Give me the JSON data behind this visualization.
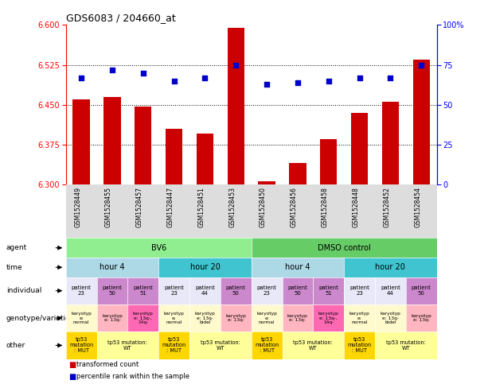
{
  "title": "GDS6083 / 204660_at",
  "samples": [
    "GSM1528449",
    "GSM1528455",
    "GSM1528457",
    "GSM1528447",
    "GSM1528451",
    "GSM1528453",
    "GSM1528450",
    "GSM1528456",
    "GSM1528458",
    "GSM1528448",
    "GSM1528452",
    "GSM1528454"
  ],
  "bar_values": [
    6.46,
    6.465,
    6.447,
    6.405,
    6.395,
    6.595,
    6.305,
    6.34,
    6.385,
    6.435,
    6.455,
    6.535
  ],
  "bar_base": 6.3,
  "dot_values": [
    67,
    72,
    70,
    65,
    67,
    75,
    63,
    64,
    65,
    67,
    67,
    75
  ],
  "ylim_left": [
    6.3,
    6.6
  ],
  "ylim_right": [
    0,
    100
  ],
  "yticks_left": [
    6.3,
    6.375,
    6.45,
    6.525,
    6.6
  ],
  "yticks_right": [
    0,
    25,
    50,
    75,
    100
  ],
  "hlines": [
    6.375,
    6.45,
    6.525
  ],
  "agent_bv6_span": [
    0,
    6
  ],
  "agent_bv6_color": "#90EE90",
  "agent_bv6_label": "BV6",
  "agent_dmso_span": [
    6,
    12
  ],
  "agent_dmso_color": "#66CC66",
  "agent_dmso_label": "DMSO control",
  "time_items": [
    {
      "span": [
        0,
        3
      ],
      "color": "#ADD8E6",
      "label": "hour 4"
    },
    {
      "span": [
        3,
        6
      ],
      "color": "#40C4D0",
      "label": "hour 20"
    },
    {
      "span": [
        6,
        9
      ],
      "color": "#ADD8E6",
      "label": "hour 4"
    },
    {
      "span": [
        9,
        12
      ],
      "color": "#40C4D0",
      "label": "hour 20"
    }
  ],
  "individual_items": [
    {
      "span": [
        0,
        1
      ],
      "color": "#E8E8F8",
      "label": "patient\n23"
    },
    {
      "span": [
        1,
        2
      ],
      "color": "#CC88CC",
      "label": "patient\n50"
    },
    {
      "span": [
        2,
        3
      ],
      "color": "#CC88CC",
      "label": "patient\n51"
    },
    {
      "span": [
        3,
        4
      ],
      "color": "#E8E8F8",
      "label": "patient\n23"
    },
    {
      "span": [
        4,
        5
      ],
      "color": "#E8E8F8",
      "label": "patient\n44"
    },
    {
      "span": [
        5,
        6
      ],
      "color": "#CC88CC",
      "label": "patient\n50"
    },
    {
      "span": [
        6,
        7
      ],
      "color": "#E8E8F8",
      "label": "patient\n23"
    },
    {
      "span": [
        7,
        8
      ],
      "color": "#CC88CC",
      "label": "patient\n50"
    },
    {
      "span": [
        8,
        9
      ],
      "color": "#CC88CC",
      "label": "patient\n51"
    },
    {
      "span": [
        9,
        10
      ],
      "color": "#E8E8F8",
      "label": "patient\n23"
    },
    {
      "span": [
        10,
        11
      ],
      "color": "#E8E8F8",
      "label": "patient\n44"
    },
    {
      "span": [
        11,
        12
      ],
      "color": "#CC88CC",
      "label": "patient\n50"
    }
  ],
  "genotype_items": [
    {
      "span": [
        0,
        1
      ],
      "color": "#FFFACD",
      "label": "karyotyp\ne:\nnormal"
    },
    {
      "span": [
        1,
        2
      ],
      "color": "#FFB6C1",
      "label": "karyotyp\ne: 13q-"
    },
    {
      "span": [
        2,
        3
      ],
      "color": "#FF69B4",
      "label": "karyotyp\ne: 13q-,\n14q-"
    },
    {
      "span": [
        3,
        4
      ],
      "color": "#FFFACD",
      "label": "karyotyp\ne:\nnormal"
    },
    {
      "span": [
        4,
        5
      ],
      "color": "#FFFACD",
      "label": "karyotyp\ne: 13q-\nbidel"
    },
    {
      "span": [
        5,
        6
      ],
      "color": "#FFB6C1",
      "label": "karyotyp\ne: 13q-"
    },
    {
      "span": [
        6,
        7
      ],
      "color": "#FFFACD",
      "label": "karyotyp\ne:\nnormal"
    },
    {
      "span": [
        7,
        8
      ],
      "color": "#FFB6C1",
      "label": "karyotyp\ne: 13q-"
    },
    {
      "span": [
        8,
        9
      ],
      "color": "#FF69B4",
      "label": "karyotyp\ne: 13q-,\n14q-"
    },
    {
      "span": [
        9,
        10
      ],
      "color": "#FFFACD",
      "label": "karyotyp\ne:\nnormal"
    },
    {
      "span": [
        10,
        11
      ],
      "color": "#FFFACD",
      "label": "karyotyp\ne: 13q-\nbidel"
    },
    {
      "span": [
        11,
        12
      ],
      "color": "#FFB6C1",
      "label": "karyotyp\ne: 13q-"
    }
  ],
  "other_items": [
    {
      "span": [
        0,
        1
      ],
      "color": "#FFD700",
      "label": "tp53\nmutation\n: MUT"
    },
    {
      "span": [
        1,
        3
      ],
      "color": "#FFFF99",
      "label": "tp53 mutation:\nWT"
    },
    {
      "span": [
        3,
        4
      ],
      "color": "#FFD700",
      "label": "tp53\nmutation\n: MUT"
    },
    {
      "span": [
        4,
        6
      ],
      "color": "#FFFF99",
      "label": "tp53 mutation:\nWT"
    },
    {
      "span": [
        6,
        7
      ],
      "color": "#FFD700",
      "label": "tp53\nmutation\n: MUT"
    },
    {
      "span": [
        7,
        9
      ],
      "color": "#FFFF99",
      "label": "tp53 mutation:\nWT"
    },
    {
      "span": [
        9,
        10
      ],
      "color": "#FFD700",
      "label": "tp53\nmutation\n: MUT"
    },
    {
      "span": [
        10,
        12
      ],
      "color": "#FFFF99",
      "label": "tp53 mutation:\nWT"
    }
  ],
  "row_labels": [
    "agent",
    "time",
    "individual",
    "genotype/variation",
    "other"
  ],
  "bar_color": "#CC0000",
  "dot_color": "#0000CC",
  "background_color": "#FFFFFF",
  "plot_bg": "#FFFFFF",
  "xlabel_bg": "#DDDDDD"
}
